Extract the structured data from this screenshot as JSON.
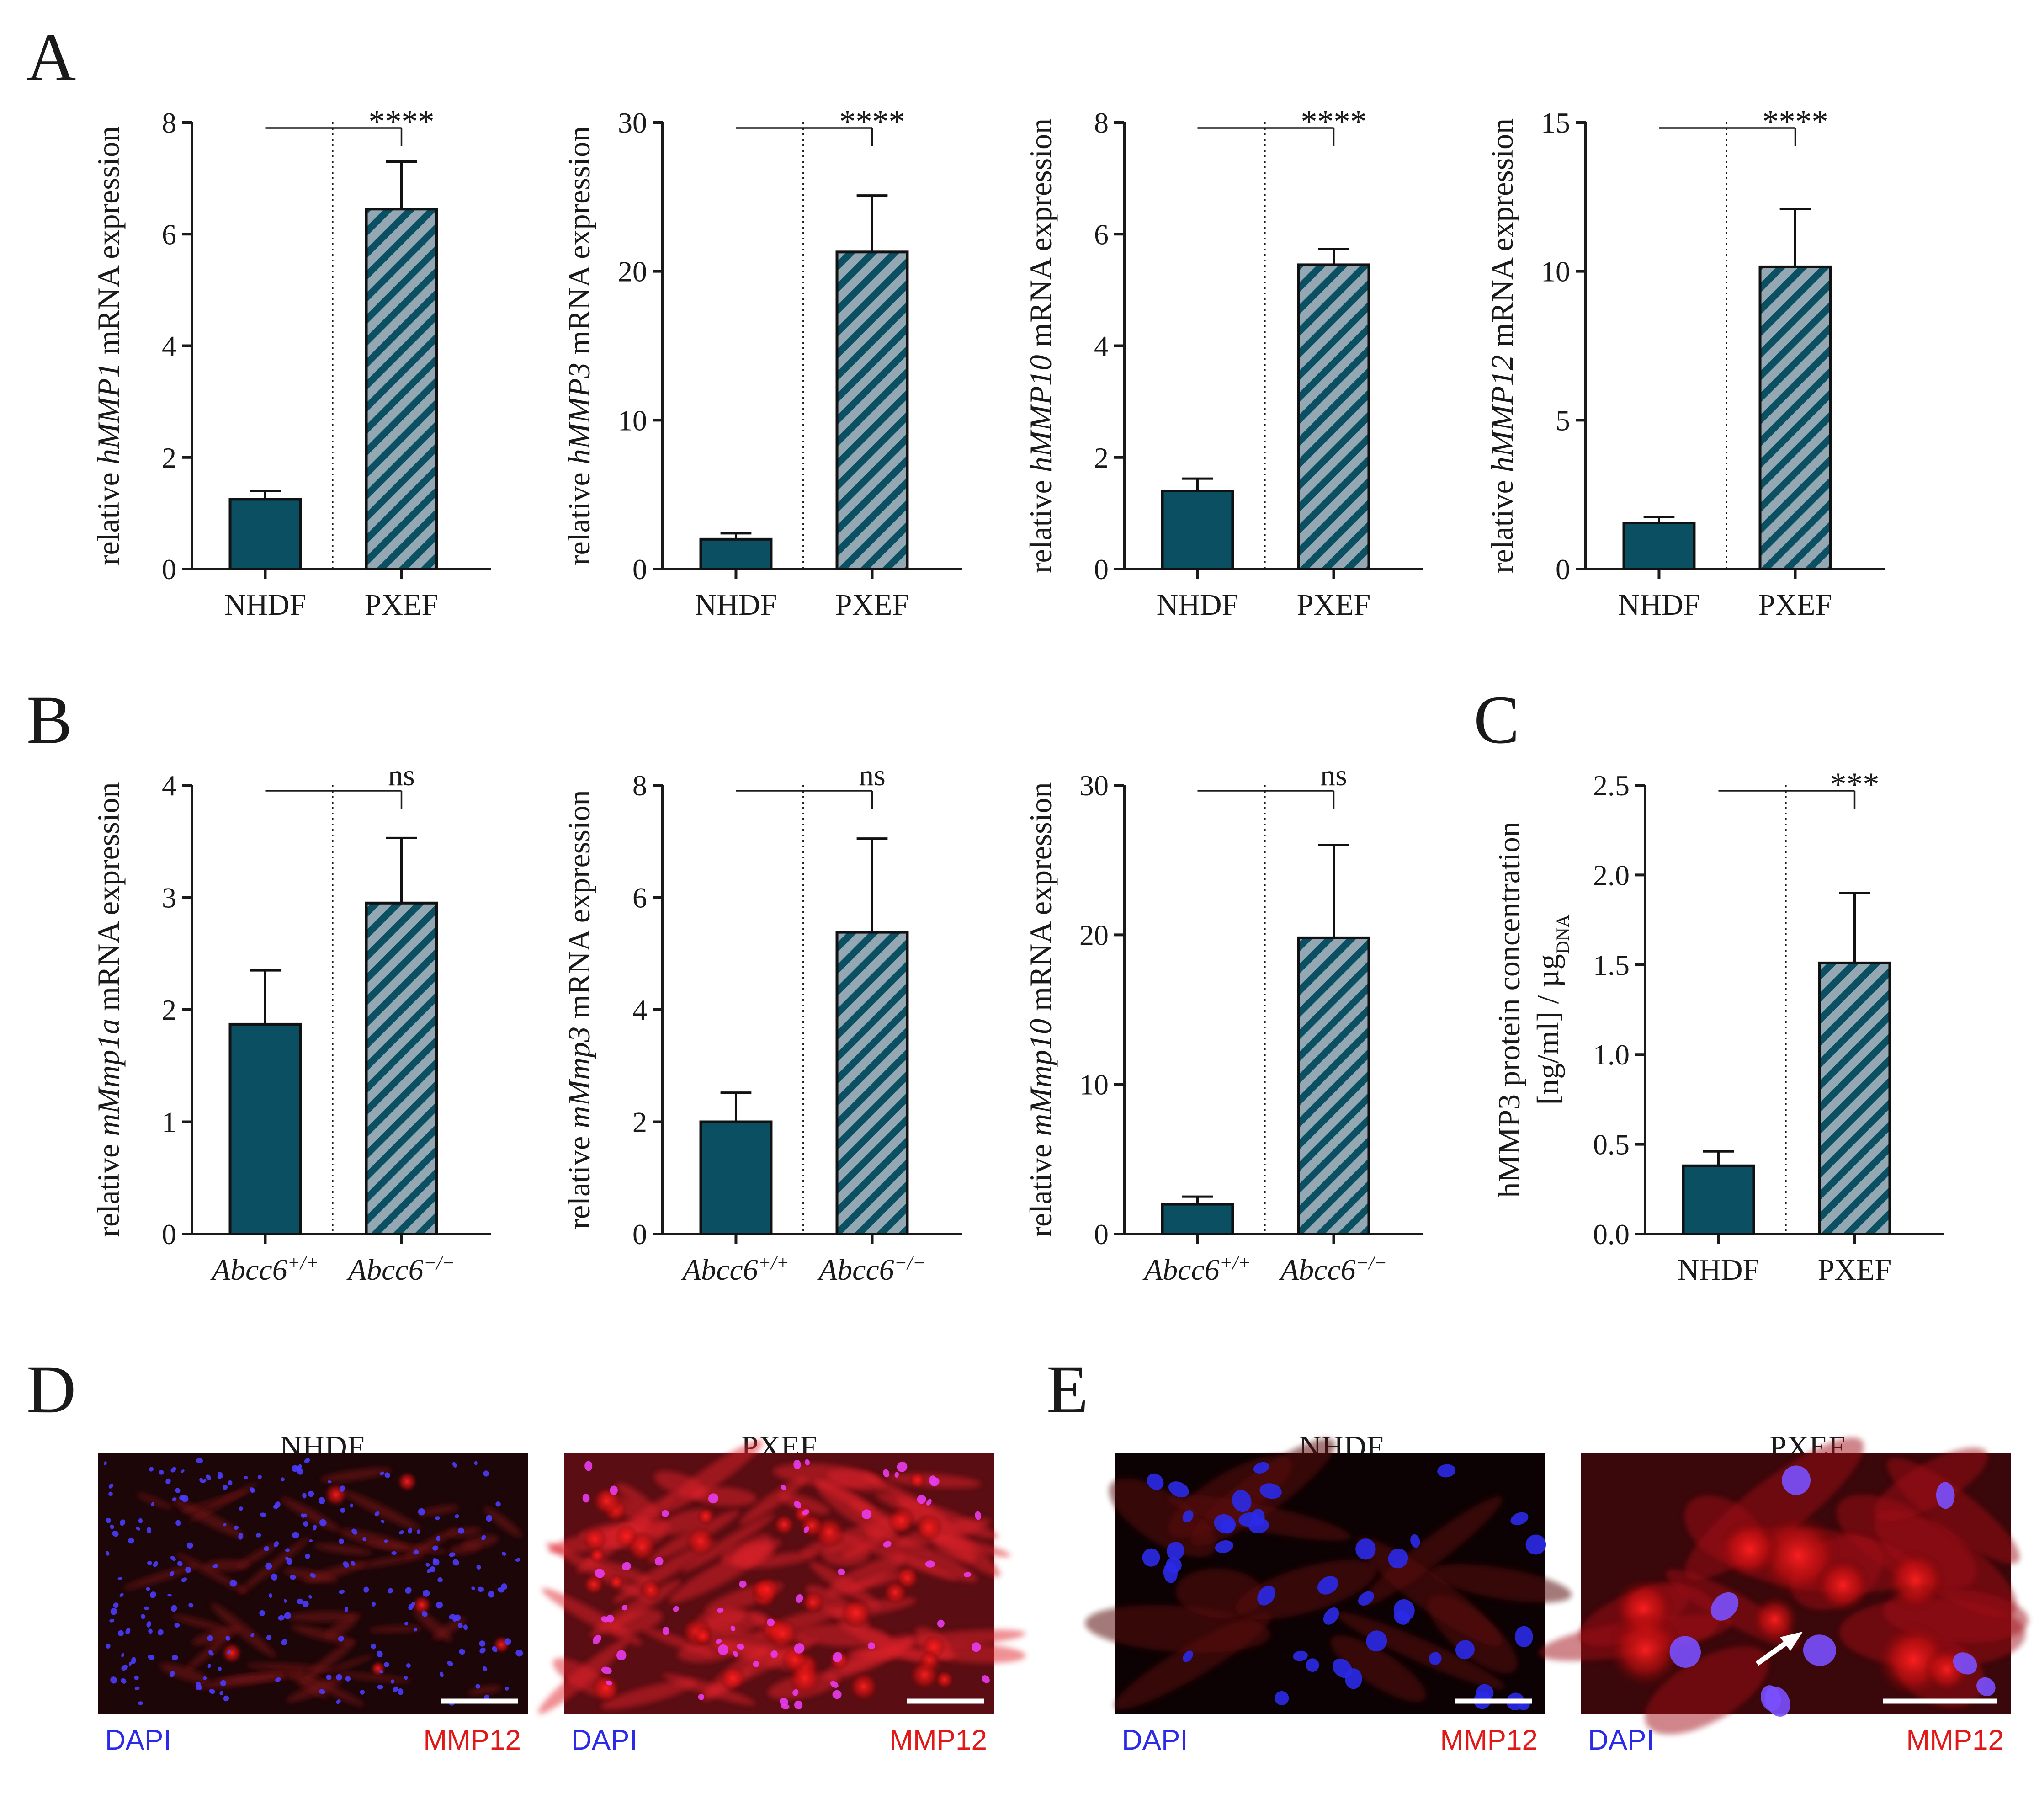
{
  "colors": {
    "dark_bar": "#0b4f63",
    "hatch_bg": "#93a8b3",
    "hatch_line": "#0b4f63",
    "axis": "#1a1a1a",
    "dapi": "#2a2ae8",
    "mmp12": "#e01818",
    "scale_bar": "#ffffff"
  },
  "panel_letters": {
    "A": "A",
    "B": "B",
    "C": "C",
    "D": "D",
    "E": "E"
  },
  "chart_data": [
    {
      "id": "A1",
      "type": "bar",
      "ylabel_pre": "relative ",
      "ylabel_gene": "hMMP1",
      "ylabel_post": " mRNA expression",
      "categories": [
        "NHDF",
        "PXEF"
      ],
      "categories_italic": false,
      "values": [
        1.25,
        6.45
      ],
      "errors": [
        0.15,
        0.85
      ],
      "ylim": [
        0,
        8
      ],
      "yticks": [
        "0",
        "2",
        "4",
        "6",
        "8"
      ],
      "ytick_values": [
        0,
        2,
        4,
        6,
        8
      ],
      "significance": "****"
    },
    {
      "id": "A2",
      "type": "bar",
      "ylabel_pre": "relative ",
      "ylabel_gene": "hMMP3",
      "ylabel_post": " mRNA expression",
      "categories": [
        "NHDF",
        "PXEF"
      ],
      "categories_italic": false,
      "values": [
        2.0,
        21.3
      ],
      "errors": [
        0.4,
        3.8
      ],
      "ylim": [
        0,
        30
      ],
      "yticks": [
        "0",
        "10",
        "20",
        "30"
      ],
      "ytick_values": [
        0,
        10,
        20,
        30
      ],
      "significance": "****"
    },
    {
      "id": "A3",
      "type": "bar",
      "ylabel_pre": "relative ",
      "ylabel_gene": "hMMP10",
      "ylabel_post": " mRNA expression",
      "categories": [
        "NHDF",
        "PXEF"
      ],
      "categories_italic": false,
      "values": [
        1.4,
        5.45
      ],
      "errors": [
        0.22,
        0.28
      ],
      "ylim": [
        0,
        8
      ],
      "yticks": [
        "0",
        "2",
        "4",
        "6",
        "8"
      ],
      "ytick_values": [
        0,
        2,
        4,
        6,
        8
      ],
      "significance": "****"
    },
    {
      "id": "A4",
      "type": "bar",
      "ylabel_pre": "relative ",
      "ylabel_gene": "hMMP12",
      "ylabel_post": " mRNA expression",
      "categories": [
        "NHDF",
        "PXEF"
      ],
      "categories_italic": false,
      "values": [
        1.55,
        10.15
      ],
      "errors": [
        0.2,
        1.95
      ],
      "ylim": [
        0,
        15
      ],
      "yticks": [
        "0",
        "5",
        "10",
        "15"
      ],
      "ytick_values": [
        0,
        5,
        10,
        15
      ],
      "significance": "****"
    },
    {
      "id": "B1",
      "type": "bar",
      "ylabel_pre": "relative ",
      "ylabel_gene": "mMmp1a",
      "ylabel_post": " mRNA expression",
      "categories": [
        "Abcc6",
        "Abcc6"
      ],
      "categories_sup": [
        "+/+",
        "−/−"
      ],
      "categories_italic": true,
      "values": [
        1.87,
        2.95
      ],
      "errors": [
        0.48,
        0.58
      ],
      "ylim": [
        0,
        4
      ],
      "yticks": [
        "0",
        "1",
        "2",
        "3",
        "4"
      ],
      "ytick_values": [
        0,
        1,
        2,
        3,
        4
      ],
      "significance": "ns"
    },
    {
      "id": "B2",
      "type": "bar",
      "ylabel_pre": "relative ",
      "ylabel_gene": "mMmp3",
      "ylabel_post": " mRNA expression",
      "categories": [
        "Abcc6",
        "Abcc6"
      ],
      "categories_sup": [
        "+/+",
        "−/−"
      ],
      "categories_italic": true,
      "values": [
        2.0,
        5.38
      ],
      "errors": [
        0.52,
        1.67
      ],
      "ylim": [
        0,
        8
      ],
      "yticks": [
        "0",
        "2",
        "4",
        "6",
        "8"
      ],
      "ytick_values": [
        0,
        2,
        4,
        6,
        8
      ],
      "significance": "ns"
    },
    {
      "id": "B3",
      "type": "bar",
      "ylabel_pre": "relative ",
      "ylabel_gene": "mMmp10",
      "ylabel_post": " mRNA expression",
      "categories": [
        "Abcc6",
        "Abcc6"
      ],
      "categories_sup": [
        "+/+",
        "−/−"
      ],
      "categories_italic": true,
      "values": [
        2.0,
        19.8
      ],
      "errors": [
        0.5,
        6.2
      ],
      "ylim": [
        0,
        30
      ],
      "yticks": [
        "0",
        "10",
        "20",
        "30"
      ],
      "ytick_values": [
        0,
        10,
        20,
        30
      ],
      "significance": "ns"
    },
    {
      "id": "C1",
      "type": "bar",
      "ylabel_line1": "hMMP3 protein concentration",
      "ylabel_line2_pre": "[ng/ml] / µg",
      "ylabel_line2_sub": "DNA",
      "categories": [
        "NHDF",
        "PXEF"
      ],
      "categories_italic": false,
      "values": [
        0.38,
        1.51
      ],
      "errors": [
        0.08,
        0.39
      ],
      "ylim": [
        0,
        2.5
      ],
      "yticks": [
        "0.0",
        "0.5",
        "1.0",
        "1.5",
        "2.0",
        "2.5"
      ],
      "ytick_values": [
        0,
        0.5,
        1.0,
        1.5,
        2.0,
        2.5
      ],
      "significance": "***"
    }
  ],
  "micrographs": {
    "D": [
      {
        "title": "NHDF",
        "dapi_label": "DAPI",
        "stain_label": "MMP12"
      },
      {
        "title": "PXEF",
        "dapi_label": "DAPI",
        "stain_label": "MMP12"
      }
    ],
    "E": [
      {
        "title": "NHDF",
        "dapi_label": "DAPI",
        "stain_label": "MMP12"
      },
      {
        "title": "PXEF",
        "dapi_label": "DAPI",
        "stain_label": "MMP12"
      }
    ]
  }
}
